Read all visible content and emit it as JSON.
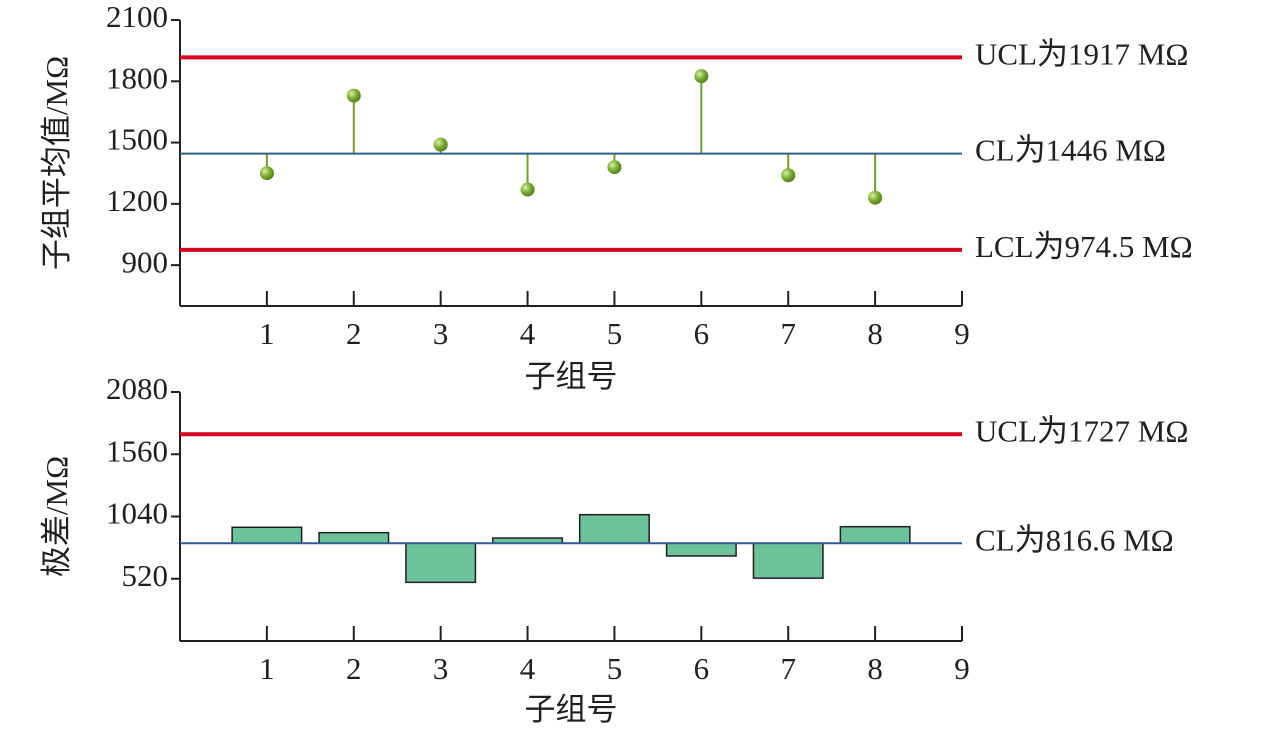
{
  "chart_data": [
    {
      "type": "stem",
      "y_label": "子组平均值/MΩ",
      "x_label": "子组号",
      "x": [
        1,
        2,
        3,
        4,
        5,
        6,
        7,
        8
      ],
      "values": [
        1350,
        1730,
        1490,
        1270,
        1380,
        1825,
        1340,
        1230
      ],
      "color": "#6f9f2b",
      "xlim": [
        0,
        9
      ],
      "xticks": [
        1,
        2,
        3,
        4,
        5,
        6,
        7,
        8,
        9
      ],
      "ylim": [
        700,
        2100
      ],
      "yticks": [
        900,
        1200,
        1500,
        1800,
        2100
      ],
      "ucl": {
        "value": 1917,
        "label": "UCL为1917 MΩ",
        "color": "#d7001f"
      },
      "cl": {
        "value": 1446,
        "label": "CL为1446 MΩ",
        "color": "#2e5f8f"
      },
      "lcl": {
        "value": 974.5,
        "label": "LCL为974.5 MΩ",
        "color": "#d7001f"
      }
    },
    {
      "type": "bar",
      "y_label": "极差/MΩ",
      "x_label": "子组号",
      "x": [
        1,
        2,
        3,
        4,
        5,
        6,
        7,
        8
      ],
      "values": [
        950,
        905,
        490,
        860,
        1055,
        710,
        525,
        955
      ],
      "color": "#6cc39b",
      "xlim": [
        0,
        9
      ],
      "xticks": [
        1,
        2,
        3,
        4,
        5,
        6,
        7,
        8,
        9
      ],
      "ylim": [
        0,
        2080
      ],
      "yticks": [
        520,
        1040,
        1560,
        2080
      ],
      "ucl": {
        "value": 1727,
        "label": "UCL为1727 MΩ",
        "color": "#d7001f"
      },
      "cl": {
        "value": 816.6,
        "label": "CL为816.6 MΩ",
        "color": "#2e5f8f"
      }
    }
  ]
}
